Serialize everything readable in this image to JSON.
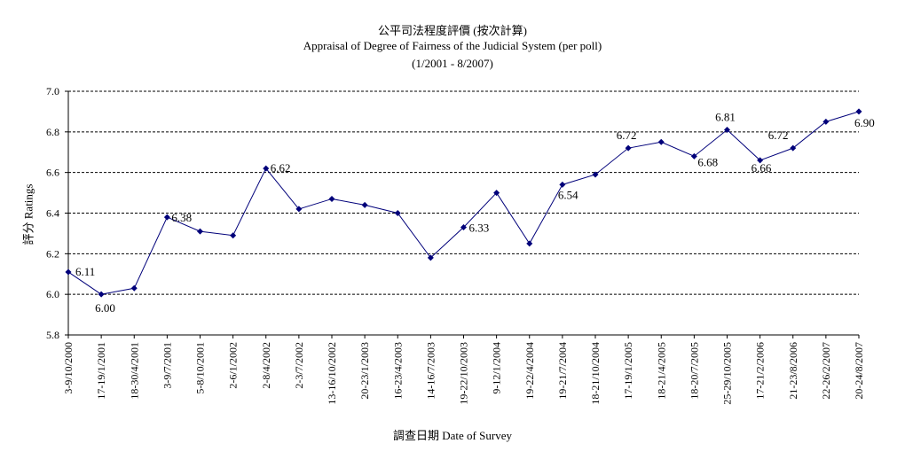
{
  "chart_data": {
    "type": "line",
    "title": "公平司法程度評價 (按次計算)",
    "subtitle": "Appraisal of Degree of Fairness of the Judicial System (per poll)",
    "period": "(1/2001 - 8/2007)",
    "xlabel": "調查日期 Date of Survey",
    "ylabel": "評分 Ratings",
    "ylim": [
      5.8,
      7.0
    ],
    "yticks": [
      "5.8",
      "6.0",
      "6.2",
      "6.4",
      "6.6",
      "6.8",
      "7.0"
    ],
    "grid": "horizontal dashed",
    "categories": [
      "3-9/10/2000",
      "17-19/1/2001",
      "18-30/4/2001",
      "3-9/7/2001",
      "5-8/10/2001",
      "2-6/1/2002",
      "2-8/4/2002",
      "2-3/7/2002",
      "13-16/10/2002",
      "20-23/1/2003",
      "16-23/4/2003",
      "14-16/7/2003",
      "19-22/10/2003",
      "9-12/1/2004",
      "19-22/4/2004",
      "19-21/7/2004",
      "18-21/10/2004",
      "17-19/1/2005",
      "18-21/4/2005",
      "18-20/7/2005",
      "25-29/10/2005",
      "17-21/2/2006",
      "21-23/8/2006",
      "22-26/2/2007",
      "20-24/8/2007"
    ],
    "series": [
      {
        "values": [
          6.11,
          6.0,
          6.03,
          6.38,
          6.31,
          6.29,
          6.62,
          6.42,
          6.47,
          6.44,
          6.4,
          6.18,
          6.33,
          6.5,
          6.25,
          6.54,
          6.59,
          6.72,
          6.75,
          6.68,
          6.81,
          6.66,
          6.72,
          6.85,
          6.9
        ],
        "color": "#00007a",
        "marker": "diamond"
      }
    ],
    "data_labels": [
      {
        "index": 0,
        "text": "6.11"
      },
      {
        "index": 1,
        "text": "6.00"
      },
      {
        "index": 3,
        "text": "6.38"
      },
      {
        "index": 6,
        "text": "6.62"
      },
      {
        "index": 12,
        "text": "6.33"
      },
      {
        "index": 15,
        "text": "6.54"
      },
      {
        "index": 17,
        "text": "6.72"
      },
      {
        "index": 19,
        "text": "6.68"
      },
      {
        "index": 20,
        "text": "6.81"
      },
      {
        "index": 21,
        "text": "6.66"
      },
      {
        "index": 22,
        "text": "6.72"
      },
      {
        "index": 24,
        "text": "6.90"
      }
    ]
  }
}
